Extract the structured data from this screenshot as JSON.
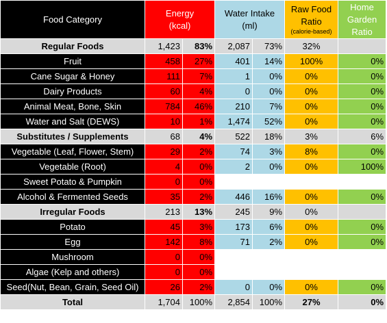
{
  "headers": {
    "category": "Food Category",
    "energy_line1": "Energy",
    "energy_line2": "(kcal)",
    "water_line1": "Water Intake",
    "water_line2": "(ml)",
    "raw_line1": "Raw Food",
    "raw_line2": "Ratio",
    "raw_note": "(calorie-based)",
    "home_line1": "Home",
    "home_line2": "Garden",
    "home_line3": "Ratio"
  },
  "rows": [
    {
      "type": "group",
      "name": "Regular Foods",
      "energy": "1,423",
      "energy_pct": "83%",
      "water": "2,087",
      "water_pct": "73%",
      "raw": "32%",
      "home": ""
    },
    {
      "type": "item",
      "name": "Fruit",
      "energy": "458",
      "energy_pct": "27%",
      "water": "401",
      "water_pct": "14%",
      "raw": "100%",
      "home": "0%"
    },
    {
      "type": "item",
      "name": "Cane Sugar & Honey",
      "energy": "111",
      "energy_pct": "7%",
      "water": "1",
      "water_pct": "0%",
      "raw": "0%",
      "home": "0%"
    },
    {
      "type": "item",
      "name": "Dairy Products",
      "energy": "60",
      "energy_pct": "4%",
      "water": "0",
      "water_pct": "0%",
      "raw": "0%",
      "home": "0%"
    },
    {
      "type": "item",
      "name": "Animal Meat, Bone, Skin",
      "energy": "784",
      "energy_pct": "46%",
      "water": "210",
      "water_pct": "7%",
      "raw": "0%",
      "home": "0%"
    },
    {
      "type": "item",
      "name": "Water and Salt (DEWS)",
      "energy": "10",
      "energy_pct": "1%",
      "water": "1,474",
      "water_pct": "52%",
      "raw": "0%",
      "home": "0%"
    },
    {
      "type": "group",
      "name": "Substitutes / Supplements",
      "energy": "68",
      "energy_pct": "4%",
      "water": "522",
      "water_pct": "18%",
      "raw": "3%",
      "home": "6%"
    },
    {
      "type": "item",
      "name": "Vegetable (Leaf, Flower, Stem)",
      "energy": "29",
      "energy_pct": "2%",
      "water": "74",
      "water_pct": "3%",
      "raw": "8%",
      "home": "0%"
    },
    {
      "type": "item",
      "name": "Vegetable (Root)",
      "energy": "4",
      "energy_pct": "0%",
      "water": "2",
      "water_pct": "0%",
      "raw": "0%",
      "home": "100%"
    },
    {
      "type": "item",
      "name": "Sweet Potato & Pumpkin",
      "energy": "0",
      "energy_pct": "0%",
      "water": "",
      "water_pct": "",
      "raw": "",
      "home": ""
    },
    {
      "type": "item",
      "name": "Alcohol & Fermented Seeds",
      "energy": "35",
      "energy_pct": "2%",
      "water": "446",
      "water_pct": "16%",
      "raw": "0%",
      "home": "0%"
    },
    {
      "type": "group",
      "name": "Irregular Foods",
      "energy": "213",
      "energy_pct": "13%",
      "water": "245",
      "water_pct": "9%",
      "raw": "0%",
      "home": ""
    },
    {
      "type": "item",
      "name": "Potato",
      "energy": "45",
      "energy_pct": "3%",
      "water": "173",
      "water_pct": "6%",
      "raw": "0%",
      "home": "0%"
    },
    {
      "type": "item",
      "name": "Egg",
      "energy": "142",
      "energy_pct": "8%",
      "water": "71",
      "water_pct": "2%",
      "raw": "0%",
      "home": "0%"
    },
    {
      "type": "item",
      "name": "Mushroom",
      "energy": "0",
      "energy_pct": "0%",
      "water": "",
      "water_pct": "",
      "raw": "",
      "home": ""
    },
    {
      "type": "item",
      "name": "Algae (Kelp and others)",
      "energy": "0",
      "energy_pct": "0%",
      "water": "",
      "water_pct": "",
      "raw": "",
      "home": ""
    },
    {
      "type": "item",
      "name": "Seed(Nut, Bean, Grain, Seed Oil)",
      "energy": "26",
      "energy_pct": "2%",
      "water": "0",
      "water_pct": "0%",
      "raw": "0%",
      "home": "0%"
    }
  ],
  "total": {
    "name": "Total",
    "energy": "1,704",
    "energy_pct": "100%",
    "water": "2,854",
    "water_pct": "100%",
    "raw": "27%",
    "home": "0%"
  },
  "colors": {
    "black": "#000000",
    "energy": "#ff0000",
    "water": "#add8e6",
    "raw": "#ffc000",
    "home": "#92d050",
    "gray": "#d9d9d9"
  }
}
